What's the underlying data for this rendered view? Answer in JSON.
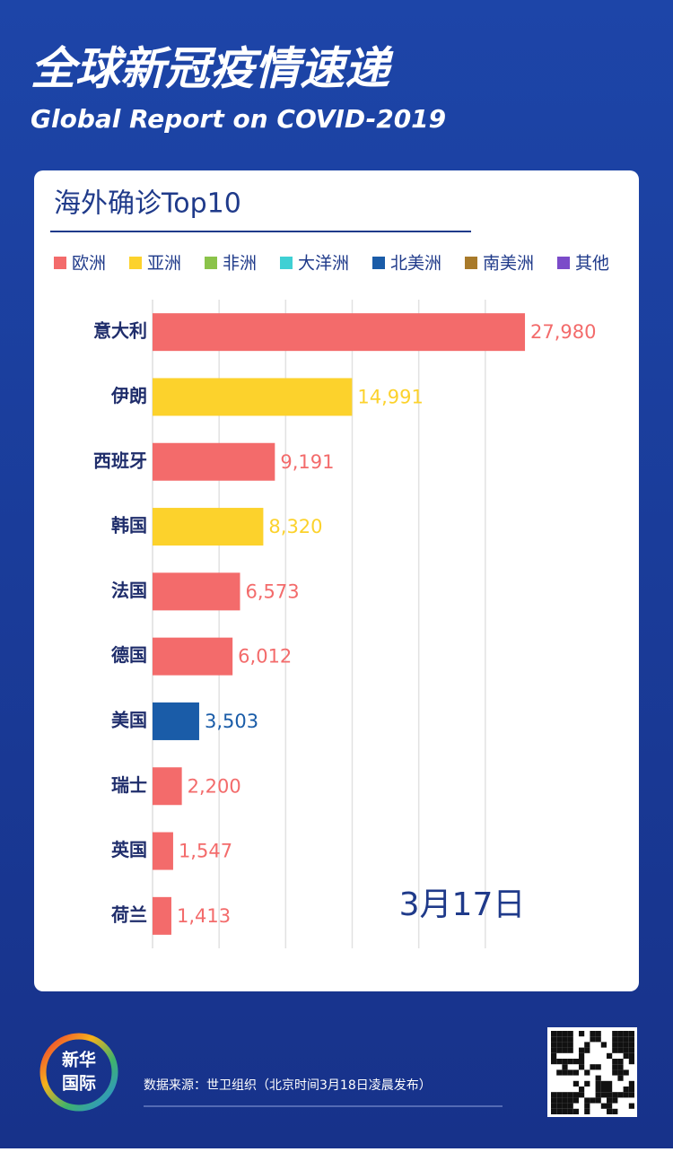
{
  "header": {
    "title": "全球新冠疫情速递",
    "subtitle": "Global Report on COVID-2019"
  },
  "chart_data": {
    "type": "bar",
    "orientation": "horizontal",
    "title": "海外确诊Top10",
    "legend": [
      {
        "name": "欧洲",
        "color": "#f36b6b"
      },
      {
        "name": "亚洲",
        "color": "#fcd22c"
      },
      {
        "name": "非洲",
        "color": "#8bc34a"
      },
      {
        "name": "大洋洲",
        "color": "#3fd0d4"
      },
      {
        "name": "北美洲",
        "color": "#1a5ca8"
      },
      {
        "name": "南美洲",
        "color": "#a87a2a"
      },
      {
        "name": "其他",
        "color": "#7b4bc9"
      }
    ],
    "categories": [
      "意大利",
      "伊朗",
      "西班牙",
      "韩国",
      "法国",
      "德国",
      "美国",
      "瑞士",
      "英国",
      "荷兰"
    ],
    "values": [
      27980,
      14991,
      9191,
      8320,
      6573,
      6012,
      3503,
      2200,
      1547,
      1413
    ],
    "value_labels": [
      "27,980",
      "14,991",
      "9,191",
      "8,320",
      "6,573",
      "6,012",
      "3,503",
      "2,200",
      "1,547",
      "1,413"
    ],
    "colors": [
      "#f36b6b",
      "#fcd22c",
      "#f36b6b",
      "#fcd22c",
      "#f36b6b",
      "#f36b6b",
      "#1a5ca8",
      "#f36b6b",
      "#f36b6b",
      "#f36b6b"
    ],
    "xlim": [
      0,
      30000
    ],
    "gridlines": [
      5000,
      10000,
      15000,
      20000,
      25000
    ],
    "annotation": "3月17日"
  },
  "footer": {
    "logo": [
      "新华",
      "国际"
    ],
    "source": "数据来源：世卫组织（北京时间3月18日凌晨发布）"
  }
}
